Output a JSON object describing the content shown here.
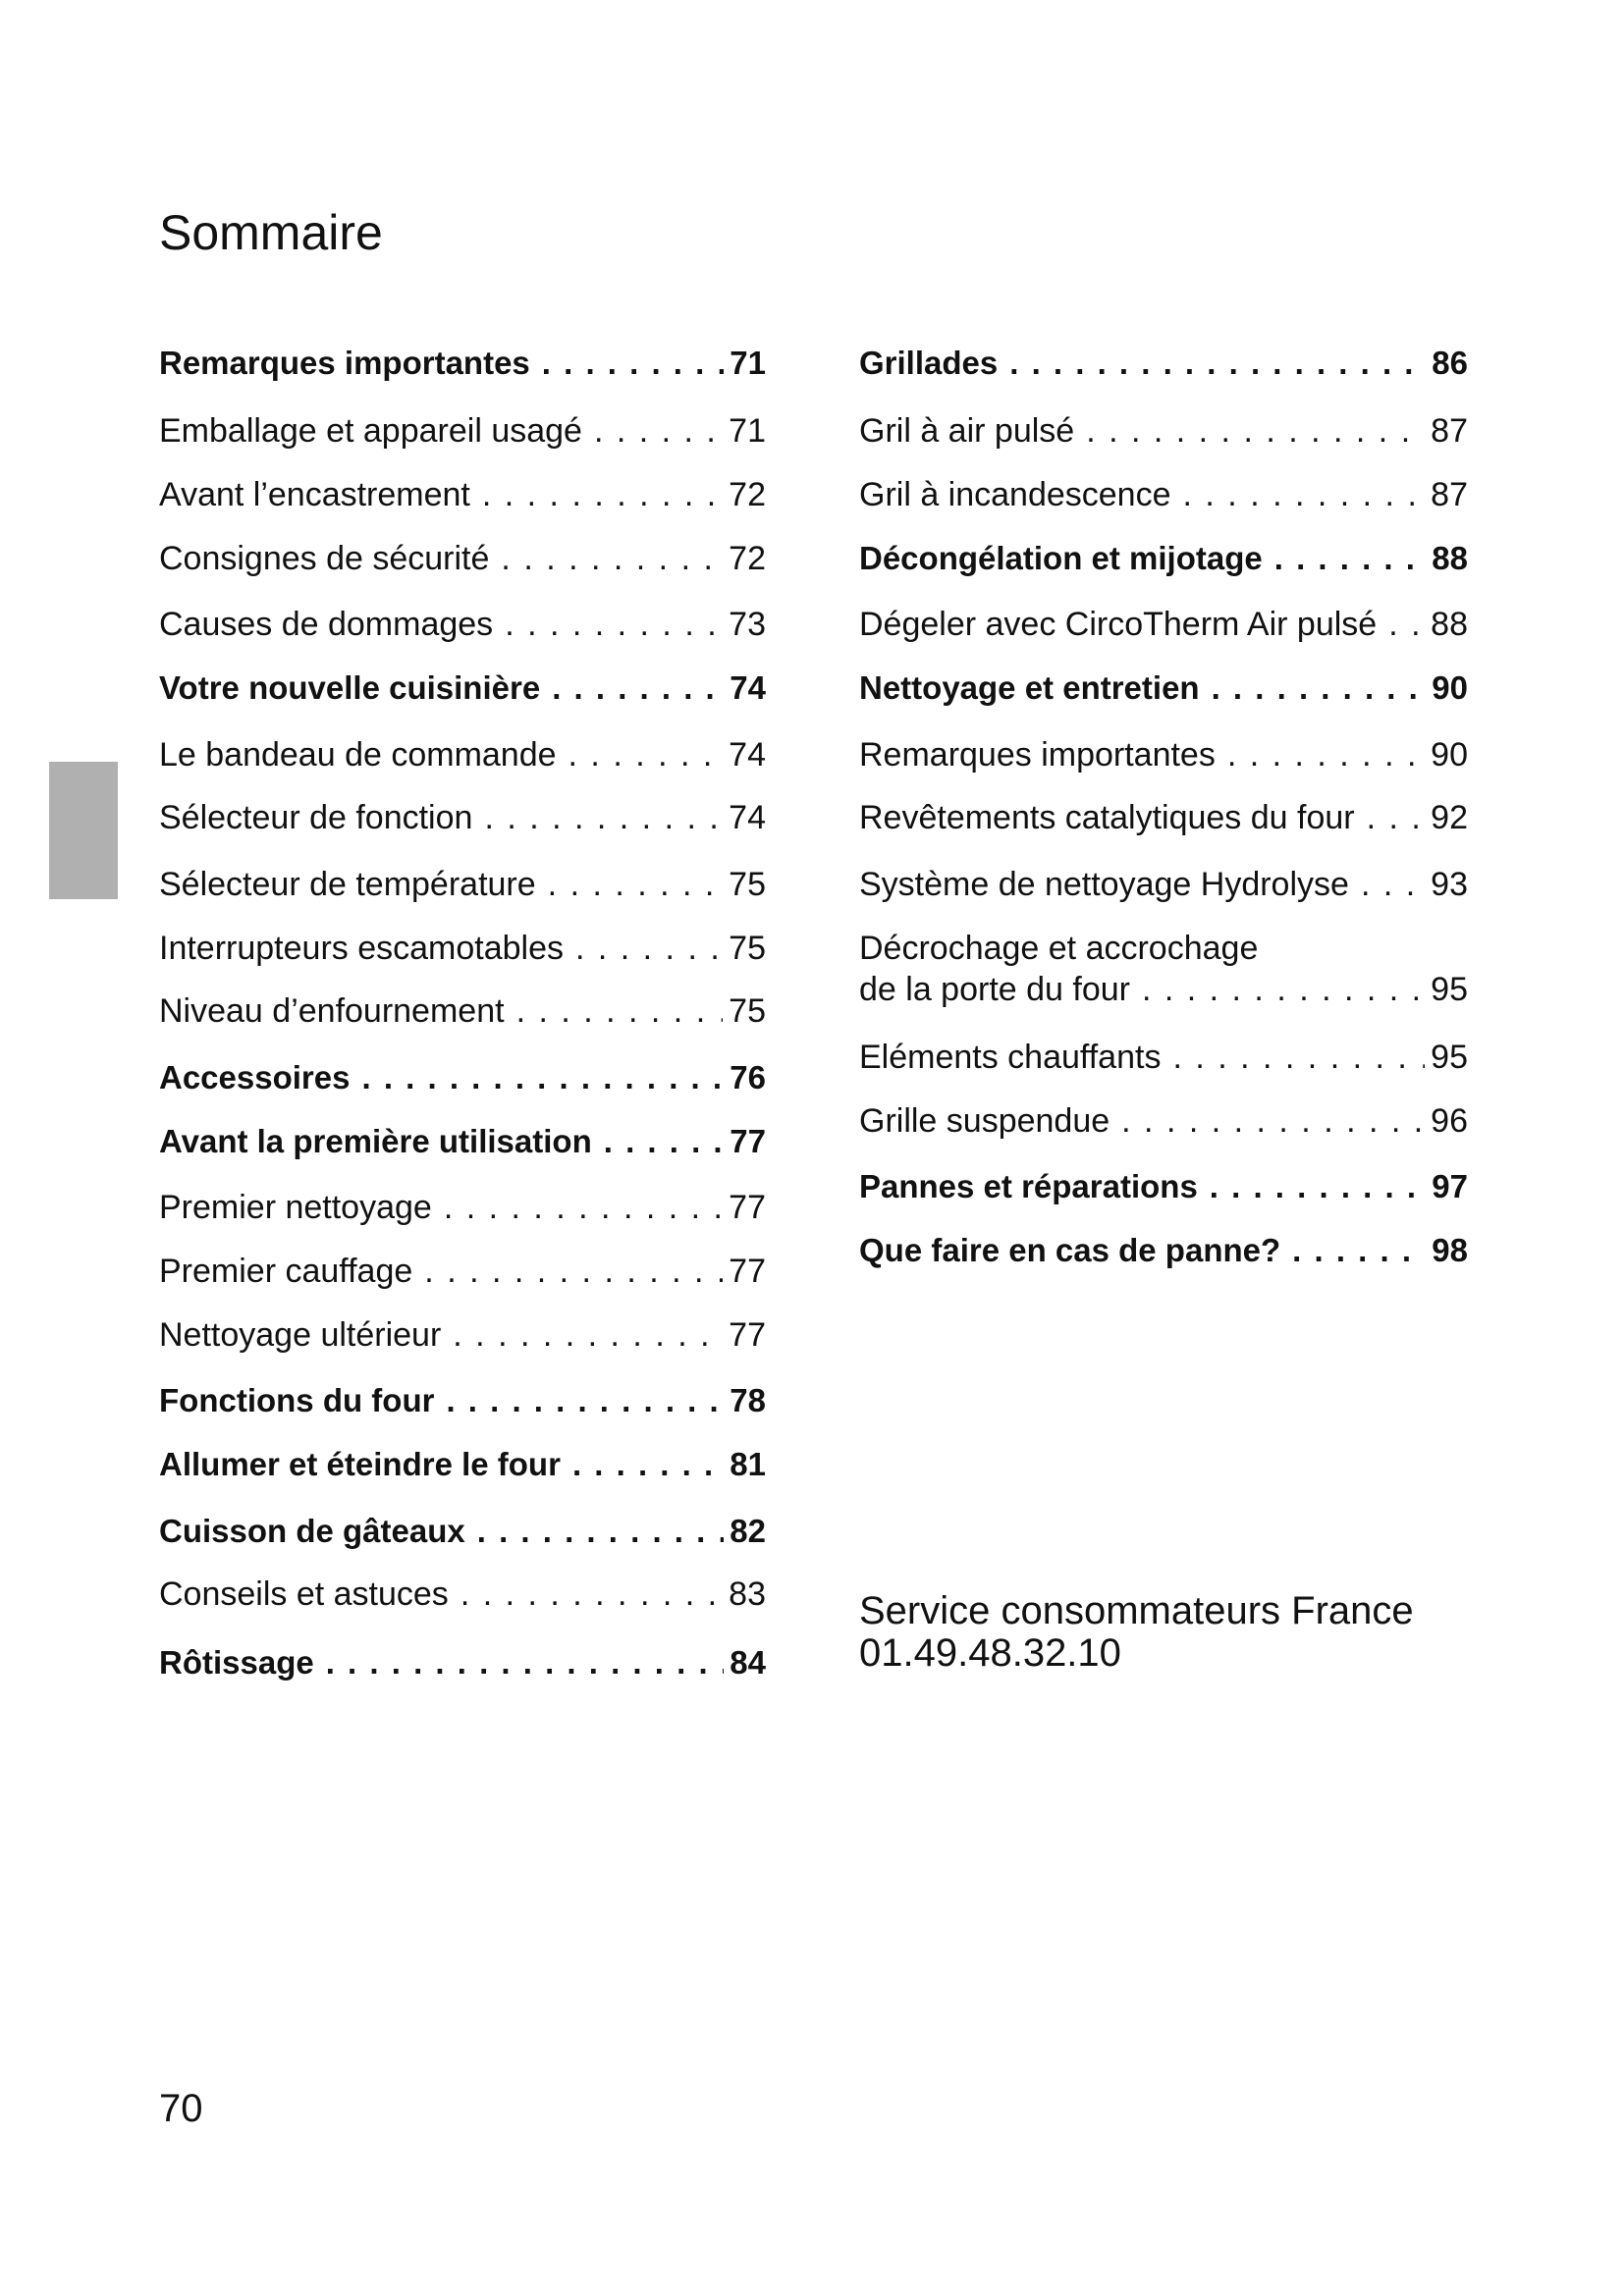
{
  "title": "Sommaire",
  "left": [
    {
      "label": "Remarques importantes",
      "page": "71",
      "bold": true
    },
    {
      "label": "Emballage et appareil usagé",
      "page": "71"
    },
    {
      "label": "Avant l’encastrement",
      "page": "72"
    },
    {
      "label": "Consignes de sécurité",
      "page": "72"
    },
    {
      "label": "Causes de dommages",
      "page": "73"
    },
    {
      "label": "Votre nouvelle cuisinière",
      "page": "74",
      "bold": true
    },
    {
      "label": "Le bandeau de commande",
      "page": "74"
    },
    {
      "label": "Sélecteur de fonction",
      "page": "74"
    },
    {
      "label": "Sélecteur de température",
      "page": "75"
    },
    {
      "label": "Interrupteurs escamotables",
      "page": "75"
    },
    {
      "label": "Niveau d’enfournement",
      "page": "75"
    },
    {
      "label": "Accessoires",
      "page": "76",
      "bold": true
    },
    {
      "label": "Avant la première utilisation",
      "page": "77",
      "bold": true
    },
    {
      "label": "Premier nettoyage",
      "page": "77"
    },
    {
      "label": "Premier cauffage",
      "page": "77"
    },
    {
      "label": "Nettoyage ultérieur",
      "page": "77"
    },
    {
      "label": "Fonctions du four",
      "page": "78",
      "bold": true
    },
    {
      "label": "Allumer et éteindre le four",
      "page": "81",
      "bold": true
    },
    {
      "label": "Cuisson de gâteaux",
      "page": "82",
      "bold": true
    },
    {
      "label": "Conseils et astuces",
      "page": "83"
    },
    {
      "label": "Rôtissage",
      "page": "84",
      "bold": true
    }
  ],
  "right": [
    {
      "label": "Grillades",
      "page": "86",
      "bold": true
    },
    {
      "label": "Gril à air pulsé",
      "page": "87"
    },
    {
      "label": "Gril à incandescence",
      "page": "87"
    },
    {
      "label": "Décongélation et mijotage",
      "page": "88",
      "bold": true
    },
    {
      "label": "Dégeler avec CircoTherm Air pulsé",
      "page": "88"
    },
    {
      "label": "Nettoyage et entretien",
      "page": "90",
      "bold": true
    },
    {
      "label": "Remarques importantes",
      "page": "90"
    },
    {
      "label": "Revêtements catalytiques du four",
      "page": "92"
    },
    {
      "label": "Système de nettoyage Hydrolyse",
      "page": "93"
    },
    {
      "label": "Décrochage et accrochage",
      "page": ""
    },
    {
      "label": "de la porte du four",
      "page": "95"
    },
    {
      "label": "Eléments chauffants",
      "page": "95"
    },
    {
      "label": "Grille suspendue",
      "page": "96"
    },
    {
      "label": "Pannes et réparations",
      "page": "97",
      "bold": true
    },
    {
      "label": "Que faire en cas de panne?",
      "page": "98",
      "bold": true
    }
  ],
  "service": {
    "line1": "Service consommateurs France",
    "line2": "01.49.48.32.10"
  },
  "page_number": "70"
}
